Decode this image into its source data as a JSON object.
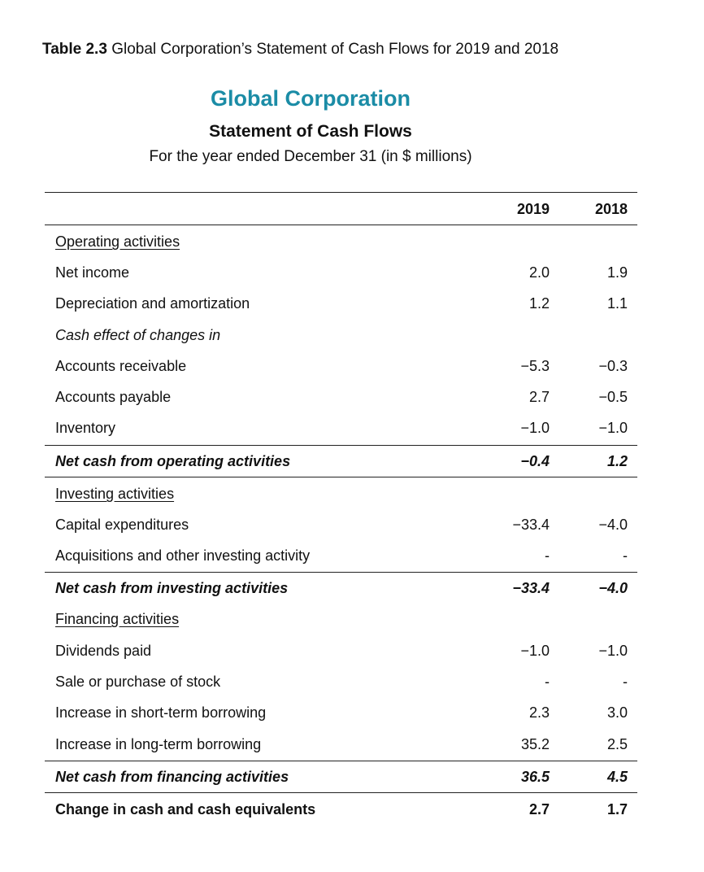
{
  "caption": {
    "label": "Table 2.3",
    "text": "Global Corporation’s Statement of Cash Flows for 2019 and 2018"
  },
  "company": "Global Corporation",
  "statement_title": "Statement of Cash Flows",
  "statement_subtitle": "For the year ended December 31 (in $ millions)",
  "columns": [
    "2019",
    "2018"
  ],
  "rows": [
    {
      "type": "section",
      "label": "Operating activities"
    },
    {
      "type": "item",
      "label": "Net income",
      "v2019": "2.0",
      "v2018": "1.9"
    },
    {
      "type": "item",
      "label": "Depreciation and amortization",
      "v2019": "1.2",
      "v2018": "1.1"
    },
    {
      "type": "italic",
      "label": "Cash effect of changes in"
    },
    {
      "type": "item",
      "label": "Accounts receivable",
      "v2019": "−5.3",
      "v2018": "−0.3"
    },
    {
      "type": "item",
      "label": "Accounts payable",
      "v2019": "2.7",
      "v2018": "−0.5"
    },
    {
      "type": "item",
      "label": "Inventory",
      "v2019": "−1.0",
      "v2018": "−1.0"
    },
    {
      "type": "total",
      "label": "Net cash from operating activities",
      "v2019": "−0.4",
      "v2018": "1.2"
    },
    {
      "type": "section",
      "label": "Investing activities"
    },
    {
      "type": "item",
      "label": "Capital expenditures",
      "v2019": "−33.4",
      "v2018": "−4.0"
    },
    {
      "type": "item",
      "label": "Acquisitions and other investing activity",
      "v2019": "-",
      "v2018": "-"
    },
    {
      "type": "total",
      "label": "Net cash from investing activities",
      "v2019": "−33.4",
      "v2018": "−4.0"
    },
    {
      "type": "section",
      "label": "Financing activities"
    },
    {
      "type": "item",
      "label": "Dividends paid",
      "v2019": "−1.0",
      "v2018": "−1.0"
    },
    {
      "type": "item",
      "label": "Sale or purchase of stock",
      "v2019": "-",
      "v2018": "-"
    },
    {
      "type": "item",
      "label": "Increase in short-term borrowing",
      "v2019": "2.3",
      "v2018": "3.0"
    },
    {
      "type": "item",
      "label": "Increase in long-term borrowing",
      "v2019": "35.2",
      "v2018": "2.5"
    },
    {
      "type": "total",
      "label": "Net cash from financing activities",
      "v2019": "36.5",
      "v2018": "4.5"
    },
    {
      "type": "grand",
      "label": "Change in cash and cash equivalents",
      "v2019": "2.7",
      "v2018": "1.7"
    }
  ]
}
